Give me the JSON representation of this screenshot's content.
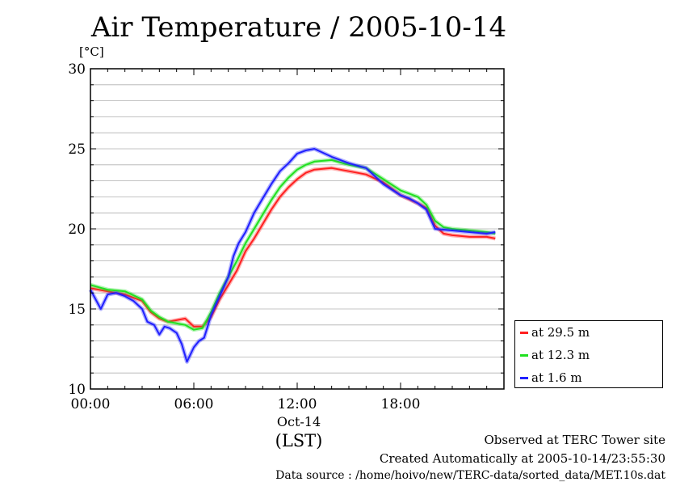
{
  "chart_data": {
    "type": "line",
    "title": "Air Temperature / 2005-10-14",
    "ylabel": "[°C]",
    "xlabel": "(LST)",
    "date_label": "Oct-14",
    "ylim": [
      10,
      30
    ],
    "xlim": [
      0,
      24
    ],
    "y_ticks": [
      "10",
      "15",
      "20",
      "25",
      "30"
    ],
    "x_ticks": [
      {
        "label": "00:00",
        "value": 0
      },
      {
        "label": "06:00",
        "value": 6
      },
      {
        "label": "12:00",
        "value": 12
      },
      {
        "label": "18:00",
        "value": 18
      }
    ],
    "grid": "horizontal",
    "legend_position": "right",
    "series": [
      {
        "name": "at 29.5 m",
        "color": "#ff2020",
        "points": [
          [
            0,
            16.3
          ],
          [
            1,
            16.1
          ],
          [
            2,
            15.9
          ],
          [
            3,
            15.5
          ],
          [
            3.5,
            14.8
          ],
          [
            4,
            14.4
          ],
          [
            4.5,
            14.2
          ],
          [
            5,
            14.3
          ],
          [
            5.5,
            14.4
          ],
          [
            6,
            13.9
          ],
          [
            6.5,
            13.9
          ],
          [
            7,
            14.5
          ],
          [
            7.5,
            15.6
          ],
          [
            8,
            16.5
          ],
          [
            8.5,
            17.4
          ],
          [
            9,
            18.6
          ],
          [
            9.5,
            19.4
          ],
          [
            10,
            20.3
          ],
          [
            10.5,
            21.2
          ],
          [
            11,
            22.0
          ],
          [
            11.5,
            22.6
          ],
          [
            12,
            23.1
          ],
          [
            12.5,
            23.5
          ],
          [
            13,
            23.7
          ],
          [
            14,
            23.8
          ],
          [
            15,
            23.6
          ],
          [
            16,
            23.4
          ],
          [
            17,
            22.9
          ],
          [
            18,
            22.1
          ],
          [
            19,
            21.6
          ],
          [
            19.5,
            21.3
          ],
          [
            20,
            20.2
          ],
          [
            20.5,
            19.7
          ],
          [
            21,
            19.6
          ],
          [
            22,
            19.5
          ],
          [
            23,
            19.5
          ],
          [
            23.5,
            19.4
          ]
        ]
      },
      {
        "name": "at 12.3 m",
        "color": "#20e020",
        "points": [
          [
            0,
            16.5
          ],
          [
            1,
            16.2
          ],
          [
            2,
            16.1
          ],
          [
            3,
            15.6
          ],
          [
            3.5,
            14.9
          ],
          [
            4,
            14.5
          ],
          [
            4.5,
            14.2
          ],
          [
            5,
            14.1
          ],
          [
            5.5,
            14.0
          ],
          [
            6,
            13.7
          ],
          [
            6.5,
            13.8
          ],
          [
            7,
            14.8
          ],
          [
            7.5,
            16.0
          ],
          [
            8,
            17.0
          ],
          [
            8.5,
            18.0
          ],
          [
            9,
            19.1
          ],
          [
            9.5,
            20.0
          ],
          [
            10,
            20.9
          ],
          [
            10.5,
            21.8
          ],
          [
            11,
            22.6
          ],
          [
            11.5,
            23.2
          ],
          [
            12,
            23.7
          ],
          [
            12.5,
            24.0
          ],
          [
            13,
            24.2
          ],
          [
            14,
            24.3
          ],
          [
            15,
            24.0
          ],
          [
            16,
            23.8
          ],
          [
            17,
            23.1
          ],
          [
            18,
            22.4
          ],
          [
            19,
            22.0
          ],
          [
            19.5,
            21.5
          ],
          [
            20,
            20.5
          ],
          [
            20.5,
            20.1
          ],
          [
            21,
            20.0
          ],
          [
            22,
            19.9
          ],
          [
            23,
            19.8
          ],
          [
            23.5,
            19.7
          ]
        ]
      },
      {
        "name": "at 1.6 m",
        "color": "#2020ff",
        "points": [
          [
            0,
            16.2
          ],
          [
            0.3,
            15.6
          ],
          [
            0.6,
            15.0
          ],
          [
            1,
            15.9
          ],
          [
            1.5,
            16.0
          ],
          [
            2,
            15.8
          ],
          [
            2.5,
            15.5
          ],
          [
            3,
            15.0
          ],
          [
            3.3,
            14.2
          ],
          [
            3.7,
            14.0
          ],
          [
            4,
            13.4
          ],
          [
            4.3,
            13.9
          ],
          [
            4.6,
            13.8
          ],
          [
            5,
            13.5
          ],
          [
            5.3,
            12.8
          ],
          [
            5.6,
            11.7
          ],
          [
            6,
            12.6
          ],
          [
            6.3,
            13.0
          ],
          [
            6.6,
            13.2
          ],
          [
            7,
            14.6
          ],
          [
            7.5,
            15.8
          ],
          [
            8,
            17.0
          ],
          [
            8.3,
            18.3
          ],
          [
            8.6,
            19.1
          ],
          [
            9,
            19.8
          ],
          [
            9.5,
            21.0
          ],
          [
            10,
            21.9
          ],
          [
            10.5,
            22.8
          ],
          [
            11,
            23.6
          ],
          [
            11.5,
            24.1
          ],
          [
            12,
            24.7
          ],
          [
            12.5,
            24.9
          ],
          [
            13,
            25.0
          ],
          [
            14,
            24.5
          ],
          [
            15,
            24.1
          ],
          [
            16,
            23.8
          ],
          [
            17,
            22.8
          ],
          [
            18,
            22.1
          ],
          [
            18.5,
            21.9
          ],
          [
            19,
            21.6
          ],
          [
            19.5,
            21.2
          ],
          [
            20,
            20.0
          ],
          [
            21,
            19.9
          ],
          [
            22,
            19.8
          ],
          [
            23,
            19.7
          ],
          [
            23.5,
            19.8
          ]
        ]
      }
    ]
  },
  "notes": {
    "line1": "Observed at TERC Tower site",
    "line2": "Created Automatically at 2005-10-14/23:55:30",
    "line3": "Data source : /home/hoivo/new/TERC-data/sorted_data/MET.10s.dat"
  }
}
